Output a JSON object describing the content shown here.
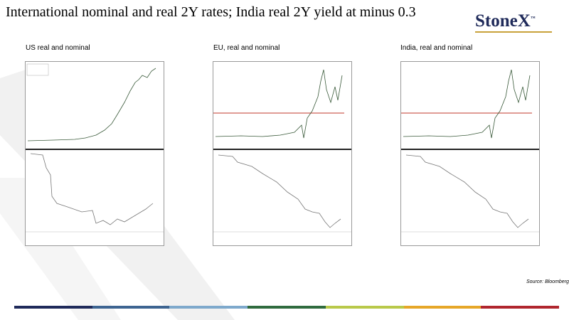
{
  "header": {
    "title": "International nominal and real 2Y rates; India real 2Y yield at minus 0.3",
    "logo": "StoneX",
    "logo_mark": "™"
  },
  "panels": [
    {
      "caption": "US real and nominal"
    },
    {
      "caption": "EU, real and nominal"
    },
    {
      "caption": "India, real and nominal"
    }
  ],
  "footer": {
    "source": "Source: Bloomberg"
  }
}
